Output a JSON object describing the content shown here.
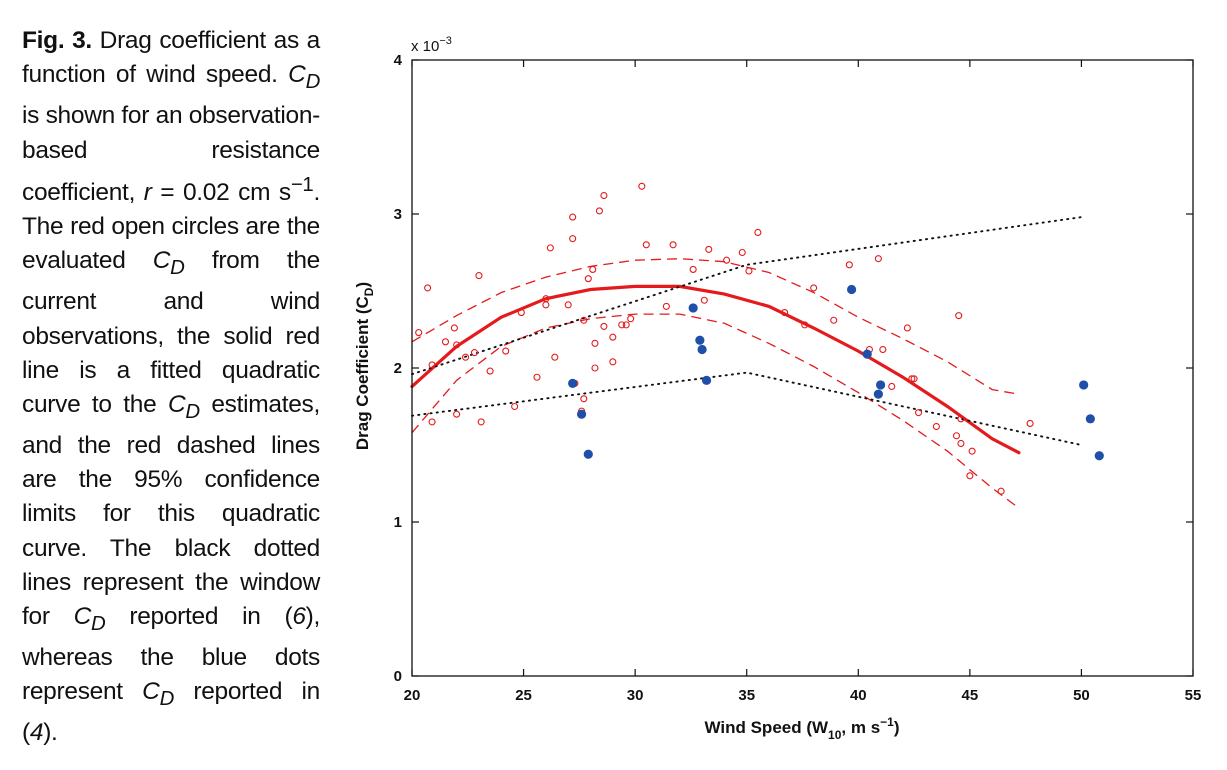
{
  "caption": {
    "fig_label": "Fig. 3.",
    "t1": " Drag coefficient as a function of wind speed. ",
    "cd": "C",
    "cd_sub": "D",
    "t2": " is shown for an observation-based resistance coefficient, ",
    "r": "r",
    "t3": " = 0.02 cm s",
    "sup": "−1",
    "t4": ". The red open circles are the evaluated ",
    "t5": " from the current and wind observations, the solid red line is a fitted quadratic curve to the ",
    "t6": " estimates, and the red dashed lines are the 95% confidence limits for this quadratic curve. The black dotted lines represent the window for ",
    "t7": " reported in (",
    "ref1": "6",
    "t8": "), whereas the blue dots represent ",
    "t9": " reported in (",
    "ref2": "4",
    "t10": ")."
  },
  "chart_data": {
    "type": "scatter",
    "title": "",
    "xlabel": "Wind Speed (W10, m s−1)",
    "xlabel_parts": {
      "main": "Wind Speed (W",
      "sub": "10",
      "mid": ", m s",
      "sup": "−1",
      "end": ")"
    },
    "ylabel": "Drag Coefficient (CD)",
    "ylabel_parts": {
      "main": "Drag Coefficient (C",
      "sub": "D",
      "end": ")"
    },
    "y_scale_label": {
      "main": "x 10",
      "sup": "−3"
    },
    "xlim": [
      20,
      55
    ],
    "ylim": [
      0,
      4
    ],
    "x_ticks": [
      "20",
      "25",
      "30",
      "35",
      "40",
      "45",
      "50",
      "55"
    ],
    "x_tick_values": [
      20,
      25,
      30,
      35,
      40,
      45,
      50,
      55
    ],
    "y_ticks": [
      "0",
      "1",
      "2",
      "3",
      "4"
    ],
    "y_tick_values": [
      0,
      1,
      2,
      3,
      4
    ],
    "units_note": "y values in units of 10^-3",
    "colors": {
      "red": "#e41a1c",
      "blue": "#1f4fa8",
      "black": "#111111"
    },
    "series": [
      {
        "name": "Evaluated CD (red open circles)",
        "style": "open-circle",
        "color": "#e41a1c",
        "points": [
          [
            20.3,
            2.23
          ],
          [
            20.7,
            2.52
          ],
          [
            20.9,
            2.02
          ],
          [
            20.9,
            1.65
          ],
          [
            21.5,
            2.17
          ],
          [
            21.9,
            2.26
          ],
          [
            22.0,
            2.15
          ],
          [
            22.0,
            1.7
          ],
          [
            22.4,
            2.07
          ],
          [
            22.8,
            2.1
          ],
          [
            23.0,
            2.6
          ],
          [
            23.1,
            1.65
          ],
          [
            23.5,
            1.98
          ],
          [
            24.2,
            2.11
          ],
          [
            24.6,
            1.75
          ],
          [
            24.9,
            2.36
          ],
          [
            25.6,
            1.94
          ],
          [
            26.0,
            2.45
          ],
          [
            26.0,
            2.41
          ],
          [
            26.2,
            2.78
          ],
          [
            26.4,
            2.07
          ],
          [
            27.0,
            2.41
          ],
          [
            27.2,
            2.84
          ],
          [
            27.2,
            2.98
          ],
          [
            27.3,
            1.9
          ],
          [
            27.6,
            1.72
          ],
          [
            27.7,
            1.8
          ],
          [
            27.7,
            2.31
          ],
          [
            27.9,
            2.58
          ],
          [
            28.1,
            2.64
          ],
          [
            28.2,
            2.16
          ],
          [
            28.2,
            2.0
          ],
          [
            28.4,
            3.02
          ],
          [
            28.6,
            3.12
          ],
          [
            28.6,
            2.27
          ],
          [
            29.0,
            2.04
          ],
          [
            29.0,
            2.2
          ],
          [
            29.4,
            2.28
          ],
          [
            29.6,
            2.28
          ],
          [
            29.8,
            2.32
          ],
          [
            30.3,
            3.18
          ],
          [
            30.5,
            2.8
          ],
          [
            31.4,
            2.4
          ],
          [
            31.7,
            2.8
          ],
          [
            32.6,
            2.64
          ],
          [
            33.1,
            2.44
          ],
          [
            33.3,
            2.77
          ],
          [
            34.1,
            2.7
          ],
          [
            34.8,
            2.75
          ],
          [
            35.1,
            2.63
          ],
          [
            35.5,
            2.88
          ],
          [
            36.7,
            2.36
          ],
          [
            37.6,
            2.28
          ],
          [
            38.0,
            2.52
          ],
          [
            38.9,
            2.31
          ],
          [
            39.6,
            2.67
          ],
          [
            40.5,
            2.12
          ],
          [
            40.9,
            2.71
          ],
          [
            41.1,
            2.12
          ],
          [
            41.5,
            1.88
          ],
          [
            42.2,
            2.26
          ],
          [
            42.4,
            1.93
          ],
          [
            42.5,
            1.93
          ],
          [
            42.7,
            1.71
          ],
          [
            43.5,
            1.62
          ],
          [
            44.4,
            1.56
          ],
          [
            44.5,
            2.34
          ],
          [
            44.6,
            1.51
          ],
          [
            44.6,
            1.67
          ],
          [
            45.0,
            1.3
          ],
          [
            45.1,
            1.46
          ],
          [
            46.4,
            1.2
          ],
          [
            47.7,
            1.64
          ]
        ]
      },
      {
        "name": "CD reported in (4) (blue dots)",
        "style": "filled-circle",
        "color": "#1f4fa8",
        "points": [
          [
            27.2,
            1.9
          ],
          [
            27.6,
            1.7
          ],
          [
            27.9,
            1.44
          ],
          [
            32.6,
            2.39
          ],
          [
            32.9,
            2.18
          ],
          [
            33.0,
            2.12
          ],
          [
            33.2,
            1.92
          ],
          [
            39.7,
            2.51
          ],
          [
            40.4,
            2.09
          ],
          [
            40.9,
            1.83
          ],
          [
            41.0,
            1.89
          ],
          [
            50.1,
            1.89
          ],
          [
            50.4,
            1.67
          ],
          [
            50.8,
            1.43
          ]
        ]
      },
      {
        "name": "Fitted quadratic curve",
        "style": "solid-line",
        "color": "#e41a1c",
        "points": [
          [
            20,
            1.88
          ],
          [
            22,
            2.14
          ],
          [
            24,
            2.33
          ],
          [
            26,
            2.45
          ],
          [
            28,
            2.51
          ],
          [
            30,
            2.53
          ],
          [
            32,
            2.53
          ],
          [
            34,
            2.48
          ],
          [
            36,
            2.4
          ],
          [
            38,
            2.26
          ],
          [
            40,
            2.11
          ],
          [
            42,
            1.94
          ],
          [
            44,
            1.75
          ],
          [
            46,
            1.54
          ],
          [
            47.2,
            1.45
          ]
        ]
      },
      {
        "name": "95% confidence limit (upper)",
        "style": "dashed-line",
        "color": "#e41a1c",
        "points": [
          [
            20,
            2.17
          ],
          [
            22,
            2.34
          ],
          [
            24,
            2.49
          ],
          [
            26,
            2.59
          ],
          [
            28,
            2.66
          ],
          [
            30,
            2.7
          ],
          [
            32,
            2.71
          ],
          [
            34,
            2.69
          ],
          [
            36,
            2.62
          ],
          [
            38,
            2.49
          ],
          [
            40,
            2.33
          ],
          [
            42,
            2.19
          ],
          [
            44,
            2.04
          ],
          [
            46,
            1.86
          ],
          [
            47.2,
            1.83
          ]
        ]
      },
      {
        "name": "95% confidence limit (lower)",
        "style": "dashed-line",
        "color": "#e41a1c",
        "points": [
          [
            20,
            1.58
          ],
          [
            22,
            1.92
          ],
          [
            24,
            2.14
          ],
          [
            26,
            2.26
          ],
          [
            28,
            2.32
          ],
          [
            30,
            2.35
          ],
          [
            32,
            2.35
          ],
          [
            34,
            2.29
          ],
          [
            36,
            2.16
          ],
          [
            38,
            2.01
          ],
          [
            40,
            1.84
          ],
          [
            42,
            1.66
          ],
          [
            44,
            1.46
          ],
          [
            46,
            1.22
          ],
          [
            47.2,
            1.09
          ]
        ]
      },
      {
        "name": "CD window reported in (6) (upper)",
        "style": "dotted-line",
        "color": "#111111",
        "points": [
          [
            20,
            1.96
          ],
          [
            35,
            2.67
          ],
          [
            50,
            2.98
          ]
        ]
      },
      {
        "name": "CD window reported in (6) (lower)",
        "style": "dotted-line",
        "color": "#111111",
        "points": [
          [
            20,
            1.69
          ],
          [
            35,
            1.97
          ],
          [
            50,
            1.5
          ]
        ]
      }
    ]
  }
}
